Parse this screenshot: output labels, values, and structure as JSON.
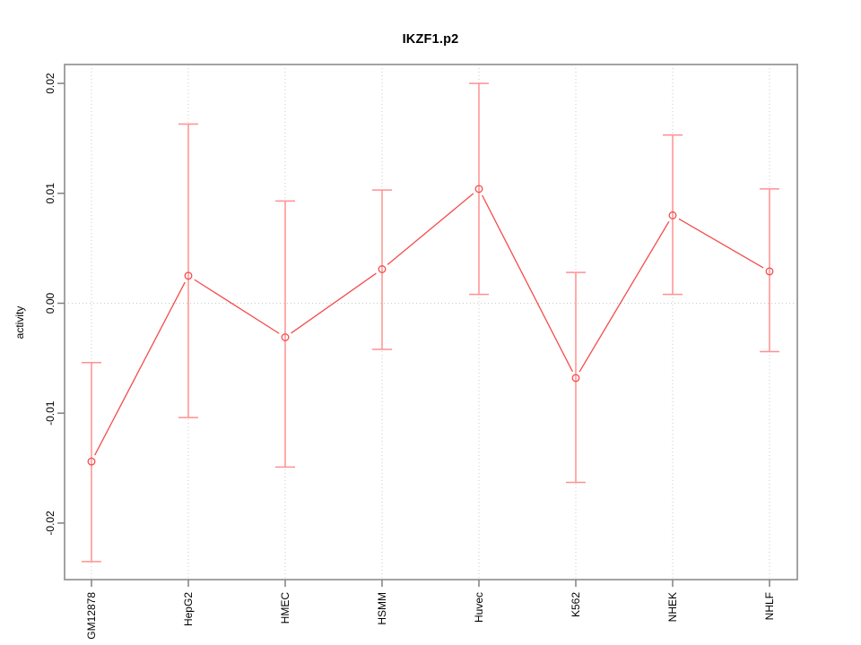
{
  "page": {
    "background_color": "#ffffff"
  },
  "chart_data": {
    "type": "line",
    "title": "IKZF1.p2",
    "ylabel": "activity",
    "xlabel": "",
    "categories": [
      "GM12878",
      "HepG2",
      "HMEC",
      "HSMM",
      "Huvec",
      "K562",
      "NHEK",
      "NHLF"
    ],
    "series": [
      {
        "name": "activity",
        "values": [
          -0.0144,
          0.0025,
          -0.0031,
          0.0031,
          0.0104,
          -0.0068,
          0.008,
          0.0029
        ],
        "upper": [
          -0.0054,
          0.0163,
          0.0093,
          0.0103,
          0.02,
          0.0028,
          0.0153,
          0.0104
        ],
        "lower": [
          -0.0235,
          -0.0104,
          -0.0149,
          -0.0042,
          0.0008,
          -0.0163,
          0.0008,
          -0.0044
        ]
      }
    ],
    "y_tick_labels": [
      "0.02",
      "0.01",
      "0.00",
      "-0.01",
      "-0.02"
    ],
    "y_tick_values": [
      0.02,
      0.01,
      0.0,
      -0.01,
      -0.02
    ],
    "ylim": [
      -0.0252,
      0.0217
    ],
    "grid": {
      "horizontal_zero_line": true,
      "vertical_category_lines": true,
      "style": "dotted"
    },
    "legend": "none",
    "marker": "open-circle",
    "colors": {
      "line": "#f44c4c",
      "error_bar": "#ff9090",
      "marker": "#f44c4c",
      "frame": "#999999",
      "tick": "#808080",
      "tick_label": "#000000",
      "grid": "#c9c9c9",
      "title": "#000000"
    }
  }
}
